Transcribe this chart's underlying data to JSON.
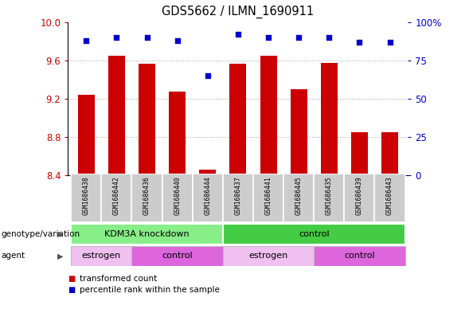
{
  "title": "GDS5662 / ILMN_1690911",
  "samples": [
    "GSM1686438",
    "GSM1686442",
    "GSM1686436",
    "GSM1686440",
    "GSM1686444",
    "GSM1686437",
    "GSM1686441",
    "GSM1686445",
    "GSM1686435",
    "GSM1686439",
    "GSM1686443"
  ],
  "bar_values": [
    9.24,
    9.65,
    9.56,
    9.27,
    8.46,
    9.56,
    9.65,
    9.3,
    9.57,
    8.85,
    8.85
  ],
  "percentile_values": [
    88,
    90,
    90,
    88,
    65,
    92,
    90,
    90,
    90,
    87,
    87
  ],
  "ylim_left": [
    8.4,
    10.0
  ],
  "ylim_right": [
    0,
    100
  ],
  "yticks_left": [
    8.4,
    8.8,
    9.2,
    9.6,
    10.0
  ],
  "yticks_right": [
    0,
    25,
    50,
    75,
    100
  ],
  "bar_color": "#cc0000",
  "dot_color": "#0000cc",
  "grid_color": "#aaaaaa",
  "bg_color": "#ffffff",
  "plot_bg": "#ffffff",
  "tick_label_bg": "#cccccc",
  "genotype_groups": [
    {
      "label": "KDM3A knockdown",
      "start": 0,
      "end": 5,
      "color": "#88ee88"
    },
    {
      "label": "control",
      "start": 5,
      "end": 11,
      "color": "#44cc44"
    }
  ],
  "agent_groups": [
    {
      "label": "estrogen",
      "start": 0,
      "end": 2,
      "color": "#f0c0f0"
    },
    {
      "label": "control",
      "start": 2,
      "end": 5,
      "color": "#dd66dd"
    },
    {
      "label": "estrogen",
      "start": 5,
      "end": 8,
      "color": "#f0c0f0"
    },
    {
      "label": "control",
      "start": 8,
      "end": 11,
      "color": "#dd66dd"
    }
  ],
  "legend_items": [
    {
      "label": "transformed count",
      "color": "#cc0000"
    },
    {
      "label": "percentile rank within the sample",
      "color": "#0000cc"
    }
  ],
  "left_label_color": "#cc0000",
  "right_label_color": "#0000cc",
  "tick_fontsize": 8.5,
  "bar_width": 0.55
}
